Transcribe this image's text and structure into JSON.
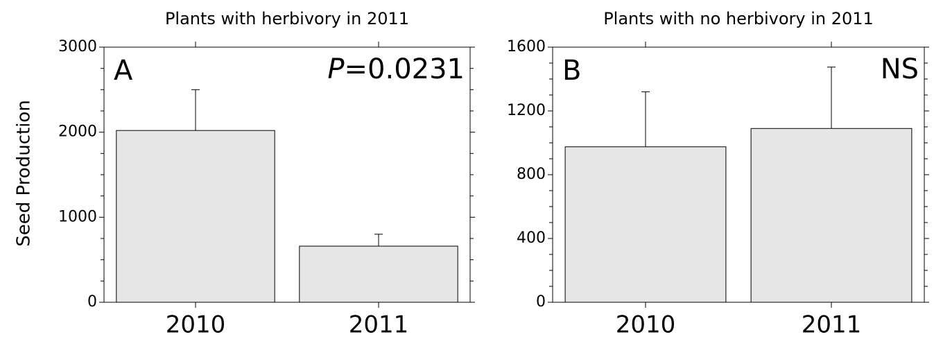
{
  "chart_data": [
    {
      "type": "bar",
      "title": "Plants with herbivory in 2011",
      "ylabel": "Seed Production",
      "panel_label": "A",
      "annotation": [
        {
          "text": "P",
          "italic": true
        },
        {
          "text": "=0.0231"
        }
      ],
      "categories": [
        "2010",
        "2011"
      ],
      "values": [
        2020,
        660
      ],
      "errors": [
        480,
        140
      ],
      "color": "#e6e6e6",
      "ylim": [
        0,
        3000
      ],
      "yticks": [
        0,
        1000,
        2000,
        3000
      ],
      "yminor": [
        250,
        500,
        750,
        1250,
        1500,
        1750,
        2250,
        2500,
        2750
      ]
    },
    {
      "type": "bar",
      "title": "Plants with no herbivory in 2011",
      "panel_label": "B",
      "annotation": [
        {
          "text": "NS"
        }
      ],
      "categories": [
        "2010",
        "2011"
      ],
      "values": [
        975,
        1090
      ],
      "errors": [
        345,
        385
      ],
      "color": "#e6e6e6",
      "ylim": [
        0,
        1600
      ],
      "yticks": [
        0,
        400,
        800,
        1200,
        1600
      ],
      "yminor": [
        100,
        200,
        300,
        500,
        600,
        700,
        900,
        1000,
        1100,
        1300,
        1400,
        1500
      ]
    }
  ]
}
